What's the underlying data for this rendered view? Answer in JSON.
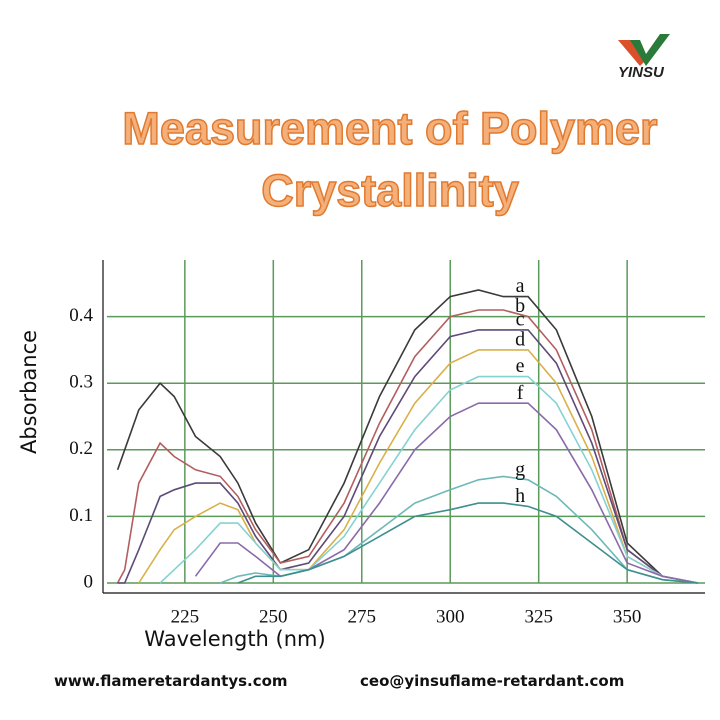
{
  "logo": {
    "text": "YINSU"
  },
  "chart_data": {
    "type": "line",
    "title": "Measurement of Polymer Crystallinity",
    "x_label": "Wavelength (nm)",
    "y_label": "Absorbance",
    "xlim": [
      203,
      372
    ],
    "ylim": [
      0,
      0.47
    ],
    "xticks": [
      225,
      250,
      275,
      300,
      325,
      350
    ],
    "yticks": [
      0,
      0.1,
      0.2,
      0.3,
      0.4
    ],
    "grid": true,
    "x": [
      206,
      208,
      212,
      218,
      222,
      228,
      235,
      240,
      245,
      252,
      260,
      270,
      280,
      290,
      300,
      308,
      315,
      322,
      330,
      340,
      350,
      360,
      370
    ],
    "series": [
      {
        "name": "a",
        "color": "#3a3a3a",
        "values": [
          0.17,
          0.2,
          0.26,
          0.3,
          0.28,
          0.22,
          0.19,
          0.15,
          0.09,
          0.03,
          0.05,
          0.15,
          0.28,
          0.38,
          0.43,
          0.44,
          0.43,
          0.43,
          0.38,
          0.25,
          0.06,
          0.01,
          0
        ]
      },
      {
        "name": "b",
        "color": "#b35e5e",
        "values": [
          0,
          0.02,
          0.15,
          0.21,
          0.19,
          0.17,
          0.16,
          0.13,
          0.08,
          0.03,
          0.04,
          0.12,
          0.24,
          0.34,
          0.4,
          0.41,
          0.41,
          0.4,
          0.35,
          0.23,
          0.05,
          0.01,
          0
        ]
      },
      {
        "name": "c",
        "color": "#5e4a78",
        "values": [
          0,
          0,
          0.05,
          0.13,
          0.14,
          0.15,
          0.15,
          0.12,
          0.07,
          0.02,
          0.03,
          0.1,
          0.22,
          0.31,
          0.37,
          0.38,
          0.38,
          0.38,
          0.33,
          0.21,
          0.05,
          0.01,
          0
        ]
      },
      {
        "name": "d",
        "color": "#d9b04a",
        "values": [
          null,
          null,
          0,
          0.05,
          0.08,
          0.1,
          0.12,
          0.11,
          0.06,
          0.02,
          0.02,
          0.08,
          0.18,
          0.27,
          0.33,
          0.35,
          0.35,
          0.35,
          0.3,
          0.19,
          0.04,
          0.01,
          0
        ]
      },
      {
        "name": "e",
        "color": "#86d2d2",
        "values": [
          null,
          null,
          null,
          0,
          0.02,
          0.05,
          0.09,
          0.09,
          0.06,
          0.02,
          0.02,
          0.07,
          0.15,
          0.23,
          0.29,
          0.31,
          0.31,
          0.31,
          0.27,
          0.17,
          0.04,
          0.01,
          0
        ]
      },
      {
        "name": "f",
        "color": "#8a6aa8",
        "values": [
          null,
          null,
          null,
          null,
          null,
          0.01,
          0.06,
          0.06,
          0.04,
          0.01,
          0.02,
          0.05,
          0.12,
          0.2,
          0.25,
          0.27,
          0.27,
          0.27,
          0.23,
          0.14,
          0.03,
          0.01,
          0
        ]
      },
      {
        "name": "g",
        "color": "#6fb8b8",
        "values": [
          null,
          null,
          null,
          null,
          null,
          null,
          0,
          0.01,
          0.015,
          0.01,
          0.02,
          0.04,
          0.08,
          0.12,
          0.14,
          0.155,
          0.16,
          0.155,
          0.13,
          0.08,
          0.02,
          0.005,
          0
        ]
      },
      {
        "name": "h",
        "color": "#3f8f8f",
        "values": [
          null,
          null,
          null,
          null,
          null,
          null,
          null,
          0,
          0.01,
          0.01,
          0.02,
          0.04,
          0.07,
          0.1,
          0.11,
          0.12,
          0.12,
          0.115,
          0.1,
          0.06,
          0.02,
          0.005,
          0
        ]
      }
    ]
  },
  "footer": {
    "website": "www.flameretardantys.com",
    "email": "ceo@yinsuflame-retardant.com"
  }
}
